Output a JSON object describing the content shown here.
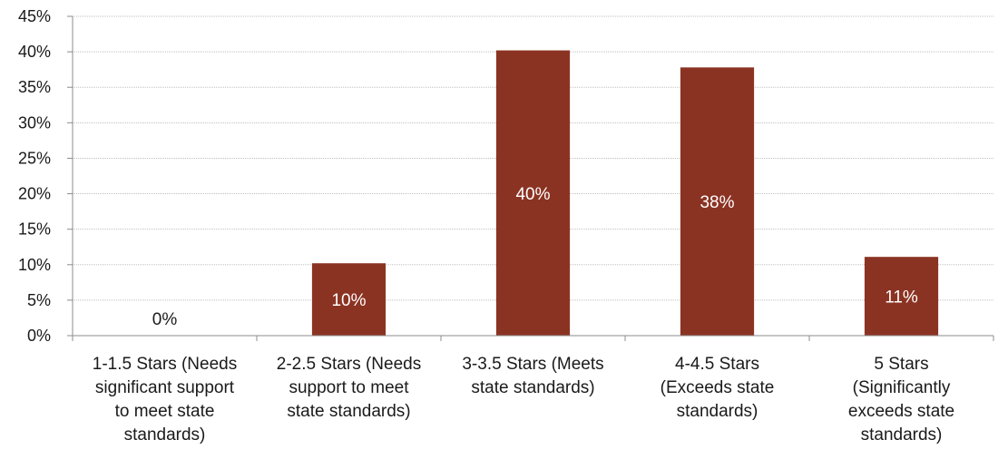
{
  "chart_data": {
    "type": "bar",
    "title": "",
    "xlabel": "",
    "ylabel": "",
    "categories": [
      [
        "1-1.5 Stars (Needs",
        "significant support",
        "to meet state",
        "standards)"
      ],
      [
        "2-2.5 Stars (Needs",
        "support to meet",
        "state standards)"
      ],
      [
        "3-3.5 Stars (Meets",
        "state standards)"
      ],
      [
        "4-4.5 Stars",
        "(Exceeds state",
        "standards)"
      ],
      [
        "5 Stars",
        "(Significantly",
        "exceeds state",
        "standards)"
      ]
    ],
    "values": [
      0,
      10.2,
      40.2,
      37.8,
      11.1
    ],
    "data_labels": [
      "0%",
      "10%",
      "40%",
      "38%",
      "11%"
    ],
    "ylim": [
      0,
      45
    ],
    "yticks": [
      "0%",
      "5%",
      "10%",
      "15%",
      "20%",
      "25%",
      "30%",
      "35%",
      "40%",
      "45%"
    ],
    "grid": true,
    "legend": "none",
    "colors": {
      "bar": "#8B3323",
      "bar_label": "#ffffff",
      "outside_label": "#1a1a1a",
      "grid": "#bfbfbf",
      "axis": "#8c8c8c"
    }
  }
}
